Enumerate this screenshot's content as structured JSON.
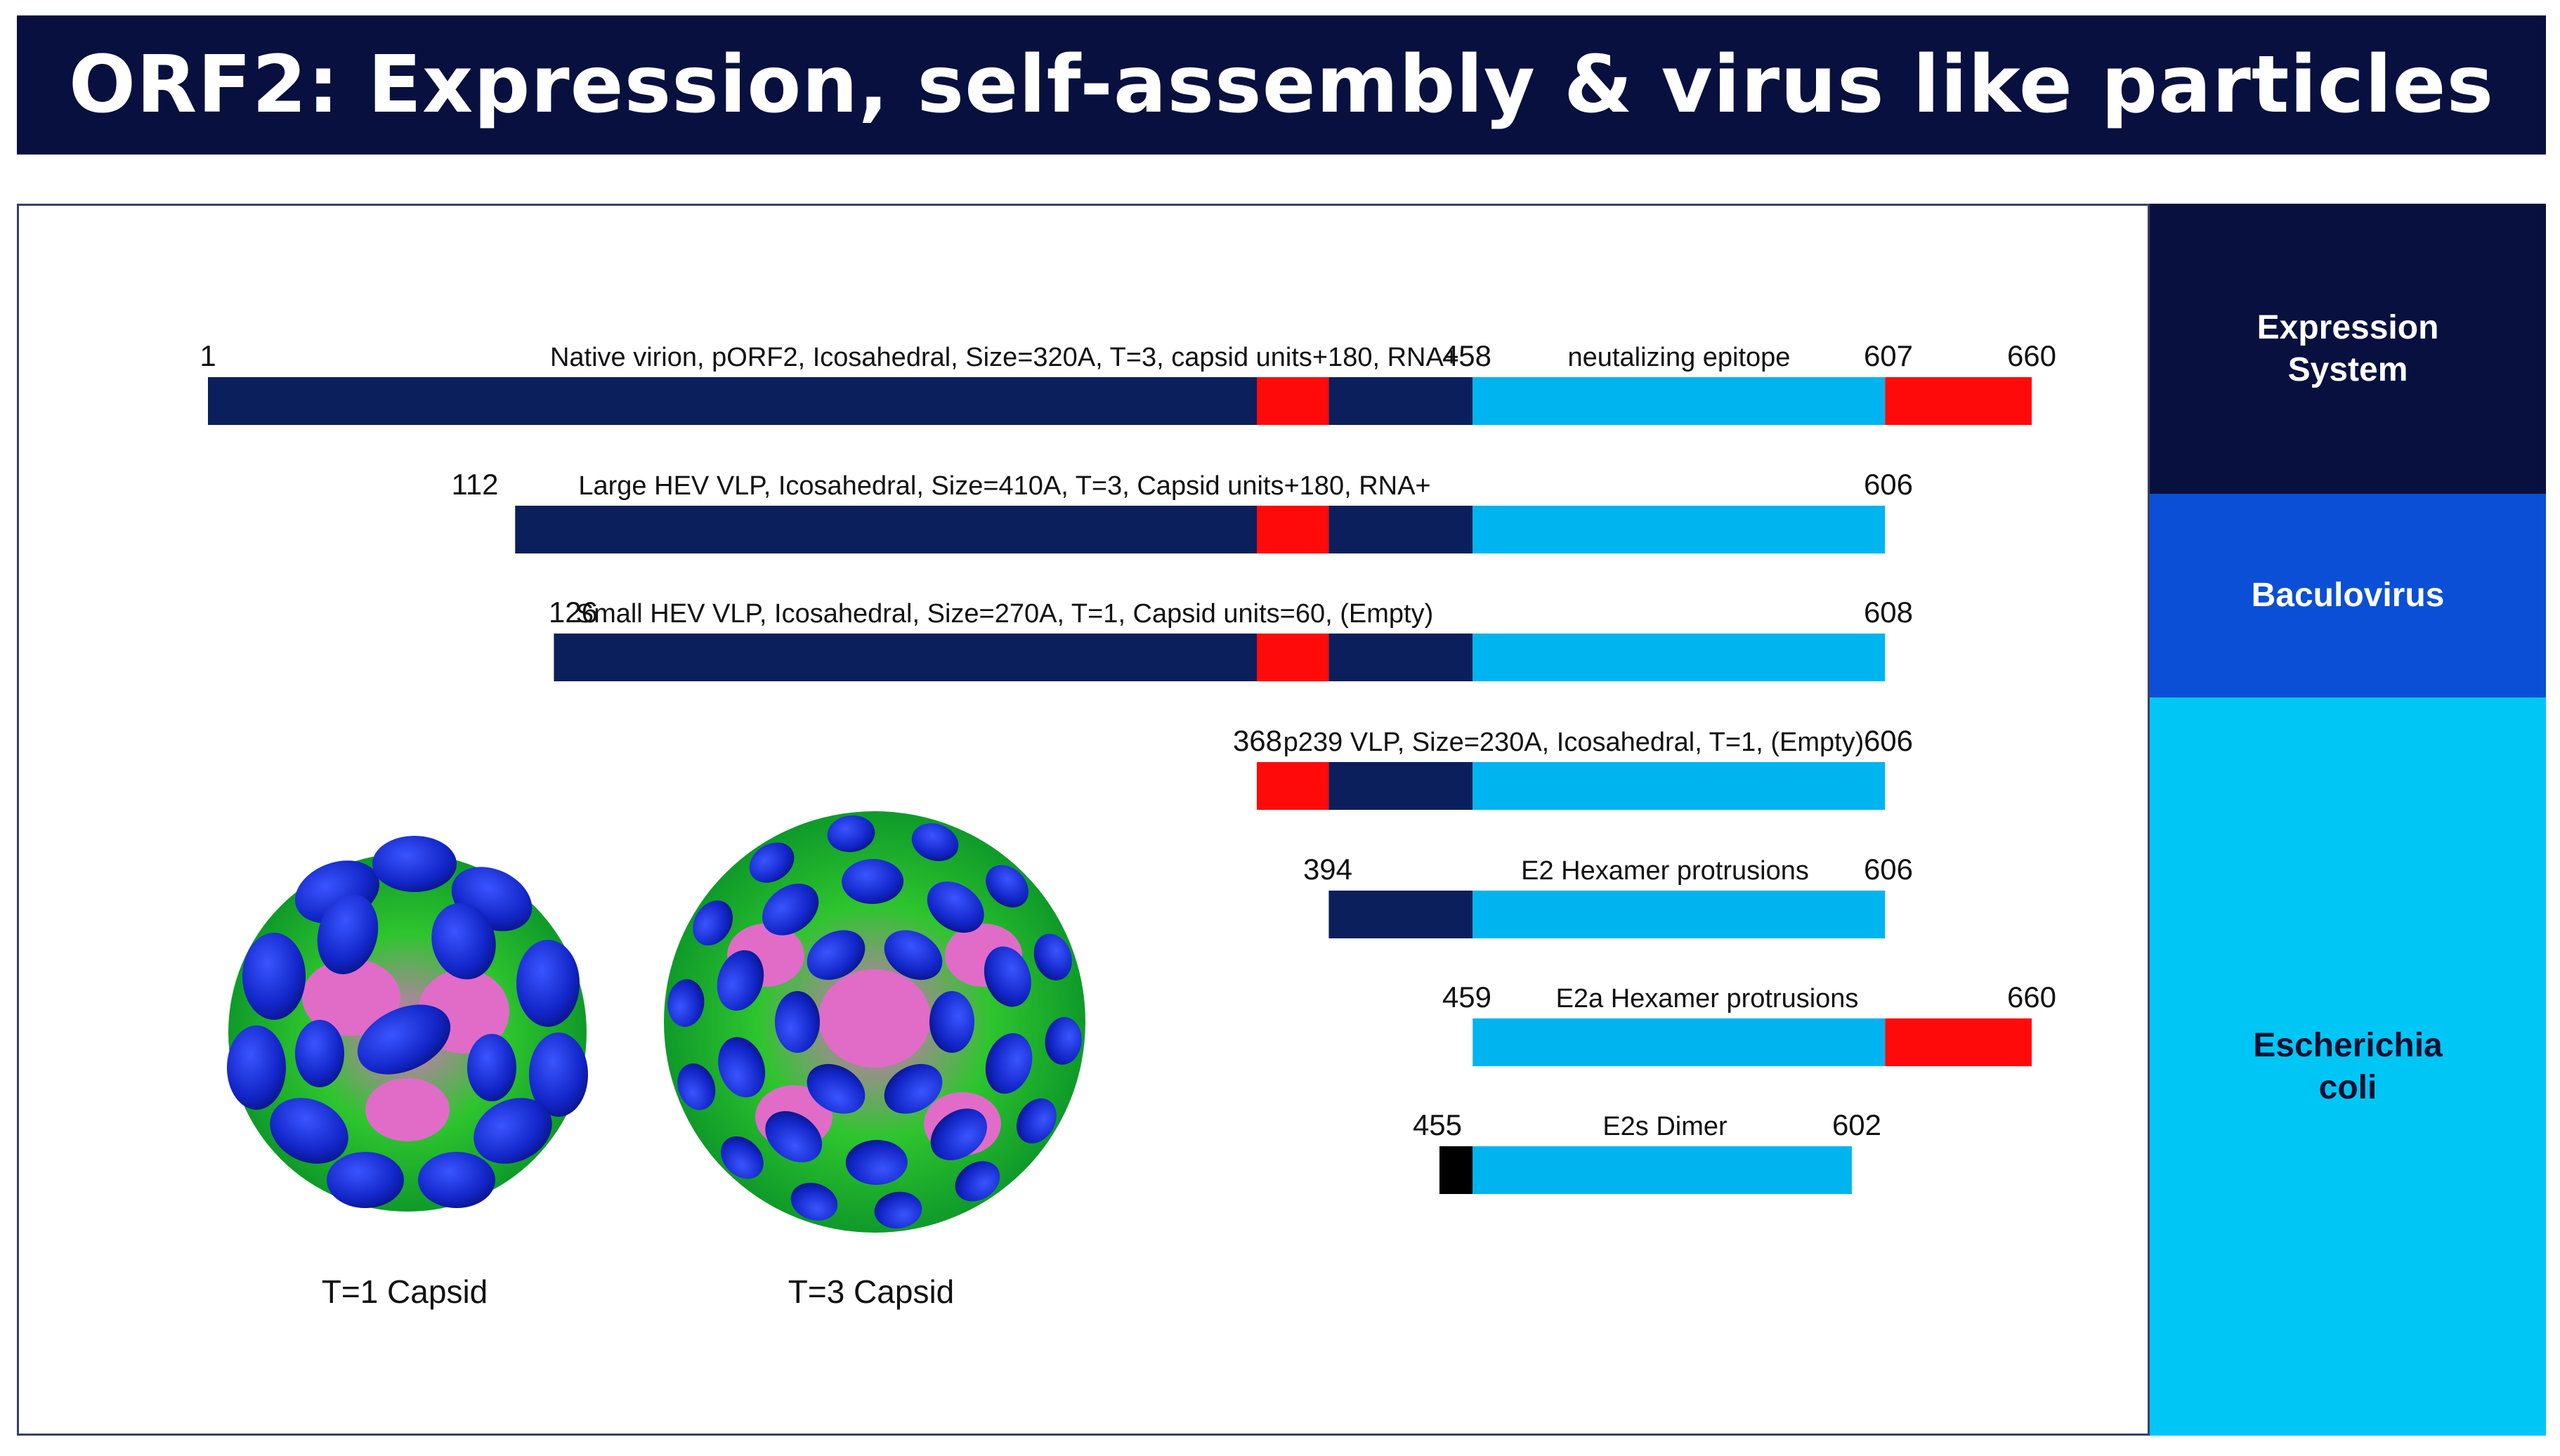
{
  "title": "ORF2: Expression, self-assembly & virus like particles",
  "colors": {
    "dark_navy": "#0a1f5c",
    "red": "#ff0a0a",
    "light_blue": "#00b4f0",
    "black": "#000000",
    "title_bg": "#07103e",
    "baculovirus_bg": "#0a4fd6",
    "ecoli_bg": "#00c6f5"
  },
  "expression_systems": [
    {
      "id": "header",
      "lines": [
        "Expression",
        "System"
      ]
    },
    {
      "id": "baculovirus",
      "lines": [
        "Baculovirus"
      ]
    },
    {
      "id": "ecoli",
      "lines": [
        "Escherichia",
        "coli"
      ]
    }
  ],
  "constructs": [
    {
      "name": "native-virion",
      "start": 1,
      "end": 660,
      "start_label": "1",
      "description": "Native virion, pORF2, Icosahedral, Size=320A, T=3, capsid units+180, RNA+",
      "extra_labels": [
        "458",
        "neutalizing epitope",
        "607",
        "660"
      ],
      "segments": [
        {
          "from": 1,
          "to": 380,
          "color": "dark_navy"
        },
        {
          "from": 380,
          "to": 406,
          "color": "red"
        },
        {
          "from": 406,
          "to": 458,
          "color": "dark_navy"
        },
        {
          "from": 458,
          "to": 607,
          "color": "light_blue"
        },
        {
          "from": 607,
          "to": 660,
          "color": "red"
        }
      ]
    },
    {
      "name": "large-hev-vlp",
      "start": 112,
      "end": 606,
      "start_label": "112",
      "description": "Large HEV VLP, Icosahedral, Size=410A, T=3, Capsid units+180, RNA+",
      "extra_labels": [
        "606"
      ],
      "segments": [
        {
          "from": 112,
          "to": 380,
          "color": "dark_navy"
        },
        {
          "from": 380,
          "to": 406,
          "color": "red"
        },
        {
          "from": 406,
          "to": 458,
          "color": "dark_navy"
        },
        {
          "from": 458,
          "to": 607,
          "color": "light_blue"
        }
      ]
    },
    {
      "name": "small-hev-vlp",
      "start": 126,
      "end": 608,
      "start_label": "126",
      "description": "Small HEV VLP, Icosahedral, Size=270A, T=1, Capsid units=60, (Empty)",
      "extra_labels": [
        "608"
      ],
      "segments": [
        {
          "from": 126,
          "to": 380,
          "color": "dark_navy"
        },
        {
          "from": 380,
          "to": 406,
          "color": "red"
        },
        {
          "from": 406,
          "to": 458,
          "color": "dark_navy"
        },
        {
          "from": 458,
          "to": 607,
          "color": "light_blue"
        }
      ]
    },
    {
      "name": "p239-vlp",
      "start": 368,
      "end": 606,
      "start_label": "368",
      "description": "p239 VLP, Size=230A, Icosahedral, T=1, (Empty)",
      "extra_labels": [
        "606"
      ],
      "segments": [
        {
          "from": 380,
          "to": 406,
          "color": "red"
        },
        {
          "from": 406,
          "to": 458,
          "color": "dark_navy"
        },
        {
          "from": 458,
          "to": 607,
          "color": "light_blue"
        }
      ]
    },
    {
      "name": "e2",
      "start": 394,
      "end": 606,
      "start_label": "394",
      "description": "E2   Hexamer protrusions",
      "extra_labels": [
        "606"
      ],
      "segments": [
        {
          "from": 406,
          "to": 458,
          "color": "dark_navy"
        },
        {
          "from": 458,
          "to": 607,
          "color": "light_blue"
        }
      ]
    },
    {
      "name": "e2a",
      "start": 459,
      "end": 660,
      "start_label": "459",
      "description": "E2a   Hexamer protrusions",
      "extra_labels": [
        "660"
      ],
      "segments": [
        {
          "from": 458,
          "to": 607,
          "color": "light_blue"
        },
        {
          "from": 607,
          "to": 660,
          "color": "red"
        }
      ]
    },
    {
      "name": "e2s",
      "start": 455,
      "end": 602,
      "start_label": "455",
      "description": "E2s   Dimer",
      "extra_labels": [
        "602"
      ],
      "segments": [
        {
          "from": 446,
          "to": 458,
          "color": "black"
        },
        {
          "from": 458,
          "to": 595,
          "color": "light_blue"
        }
      ]
    }
  ],
  "capsids": [
    {
      "id": "t1",
      "label": "T=1  Capsid"
    },
    {
      "id": "t3",
      "label": "T=3  Capsid"
    }
  ]
}
